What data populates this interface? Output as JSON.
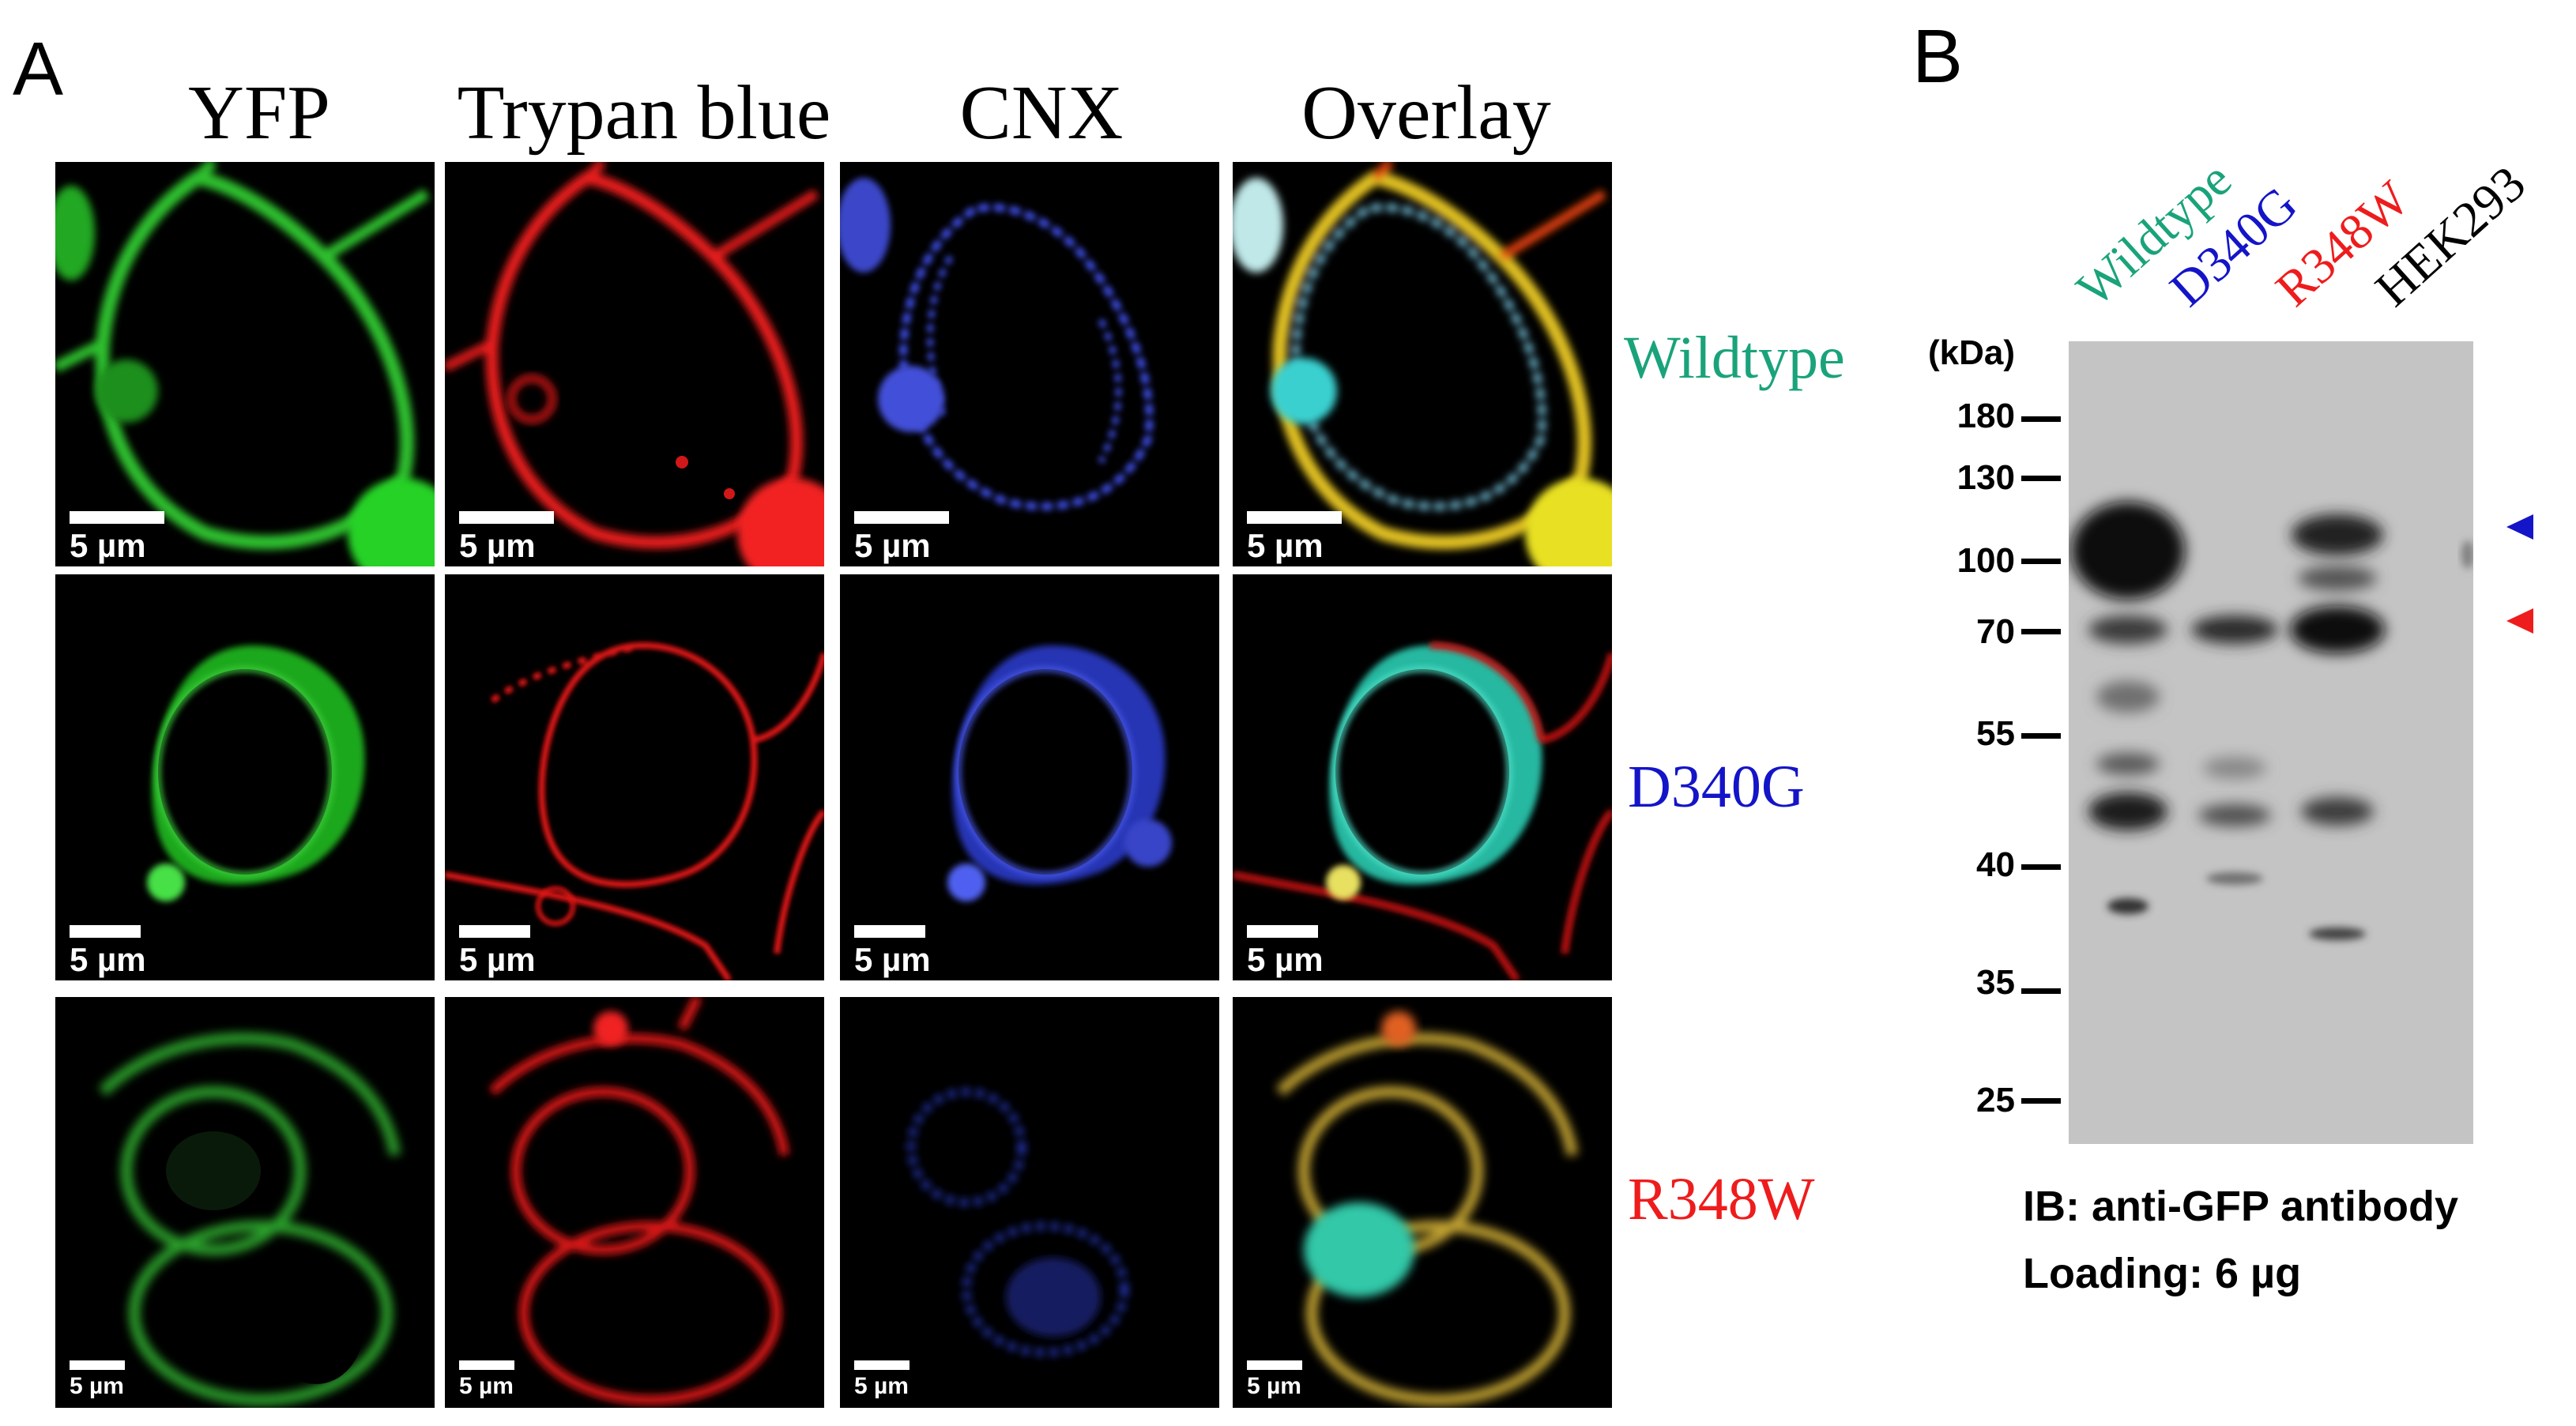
{
  "panel_a": {
    "letter": "A",
    "columns": [
      "YFP",
      "Trypan blue",
      "CNX",
      "Overlay"
    ],
    "rows": [
      {
        "label": "Wildtype",
        "color": "#1aa37a"
      },
      {
        "label": "D340G",
        "color": "#1414c8"
      },
      {
        "label": "R348W",
        "color": "#ee1c1c"
      }
    ],
    "scale_text": "5 µm"
  },
  "panel_b": {
    "letter": "B",
    "lanes": [
      {
        "label": "Wildtype",
        "color": "#1aa37a"
      },
      {
        "label": "D340G",
        "color": "#1414c8"
      },
      {
        "label": "R348W",
        "color": "#ee1c1c"
      },
      {
        "label": "HEK293",
        "color": "#000000"
      }
    ],
    "kda_label": "(kDa)",
    "markers": [
      "180",
      "130",
      "100",
      "70",
      "55",
      "40",
      "35",
      "25"
    ],
    "arrow_colors": {
      "upper": "#1414c8",
      "lower": "#ee1c1c"
    },
    "caption_line1": "IB: anti-GFP antibody",
    "caption_line2": "Loading: 6 µg"
  }
}
